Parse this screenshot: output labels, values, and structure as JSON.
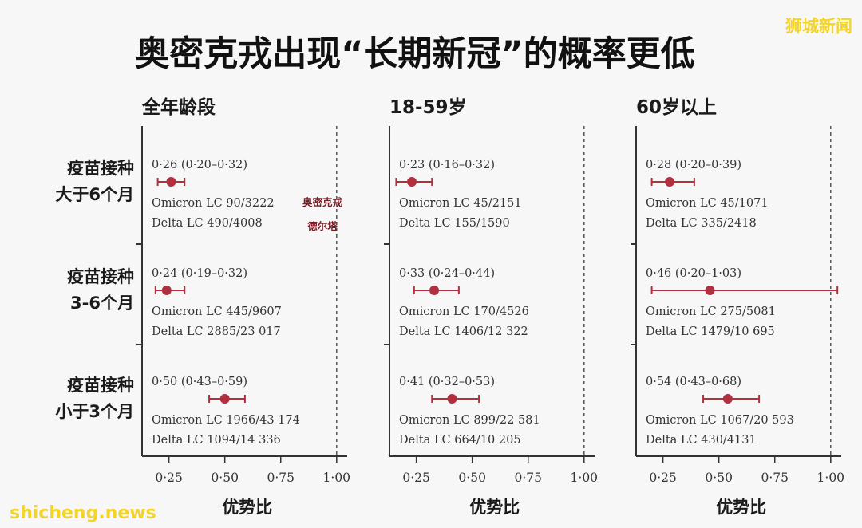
{
  "header": {
    "title": "奥密克戎出现“长期新冠”的概率更低",
    "watermark_top_right": "狮城新闻",
    "watermark_bottom_left": "shicheng.news"
  },
  "colors": {
    "marker": "#b03040",
    "axis": "#333333",
    "reference_line": "#555555",
    "annotation": "#7a1a24",
    "watermark": "#f3d42a"
  },
  "row_labels": [
    [
      "疫苗接种",
      "大于6个月"
    ],
    [
      "疫苗接种",
      "3-6个月"
    ],
    [
      "疫苗接种",
      "小于3个月"
    ]
  ],
  "annotation": [
    "奥密克戎",
    "德尔塔"
  ],
  "chart_data": {
    "type": "forest",
    "xlabel": "优势比",
    "xlim": [
      0.13,
      1.04
    ],
    "xticks": [
      0.25,
      0.5,
      0.75,
      1.0
    ],
    "tick_labels": [
      "0·25",
      "0·50",
      "0·75",
      "1·00"
    ],
    "reference_value": 1.0,
    "panels": [
      {
        "title": "全年龄段",
        "rows": [
          {
            "or": 0.26,
            "lo": 0.2,
            "hi": 0.32,
            "ci_text": "0·26 (0·20–0·32)",
            "omicron": "Omicron LC 90/3222",
            "delta": "Delta LC 490/4008"
          },
          {
            "or": 0.24,
            "lo": 0.19,
            "hi": 0.32,
            "ci_text": "0·24 (0·19–0·32)",
            "omicron": "Omicron LC 445/9607",
            "delta": "Delta LC 2885/23 017"
          },
          {
            "or": 0.5,
            "lo": 0.43,
            "hi": 0.59,
            "ci_text": "0·50 (0·43–0·59)",
            "omicron": "Omicron LC 1966/43 174",
            "delta": "Delta LC 1094/14 336"
          }
        ]
      },
      {
        "title": "18-59岁",
        "rows": [
          {
            "or": 0.23,
            "lo": 0.16,
            "hi": 0.32,
            "ci_text": "0·23 (0·16–0·32)",
            "omicron": "Omicron LC 45/2151",
            "delta": "Delta LC 155/1590"
          },
          {
            "or": 0.33,
            "lo": 0.24,
            "hi": 0.44,
            "ci_text": "0·33 (0·24–0·44)",
            "omicron": "Omicron LC 170/4526",
            "delta": "Delta LC 1406/12 322"
          },
          {
            "or": 0.41,
            "lo": 0.32,
            "hi": 0.53,
            "ci_text": "0·41 (0·32–0·53)",
            "omicron": "Omicron LC 899/22 581",
            "delta": "Delta LC 664/10 205"
          }
        ]
      },
      {
        "title": "60岁以上",
        "rows": [
          {
            "or": 0.28,
            "lo": 0.2,
            "hi": 0.39,
            "ci_text": "0·28 (0·20–0·39)",
            "omicron": "Omicron LC 45/1071",
            "delta": "Delta LC 335/2418"
          },
          {
            "or": 0.46,
            "lo": 0.2,
            "hi": 1.03,
            "ci_text": "0·46 (0·20–1·03)",
            "omicron": "Omicron LC 275/5081",
            "delta": "Delta LC 1479/10 695"
          },
          {
            "or": 0.54,
            "lo": 0.43,
            "hi": 0.68,
            "ci_text": "0·54 (0·43–0·68)",
            "omicron": "Omicron LC 1067/20 593",
            "delta": "Delta LC 430/4131"
          }
        ]
      }
    ]
  }
}
